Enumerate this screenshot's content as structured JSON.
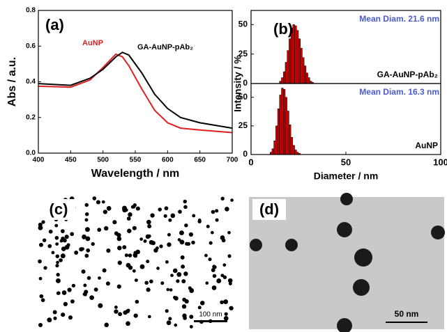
{
  "chart_data": [
    {
      "type": "line",
      "panel_label": "(a)",
      "xlabel": "Wavelength / nm",
      "ylabel": "Abs / a.u.",
      "x": [
        400,
        450,
        480,
        500,
        520,
        530,
        540,
        560,
        580,
        600,
        620,
        650,
        700
      ],
      "series": [
        {
          "name": "AuNP",
          "color": "#e02020",
          "values": [
            0.375,
            0.37,
            0.41,
            0.48,
            0.555,
            0.54,
            0.49,
            0.36,
            0.24,
            0.17,
            0.14,
            0.13,
            0.115
          ]
        },
        {
          "name": "GA-AuNP-pAb₂",
          "color": "#000000",
          "values": [
            0.39,
            0.38,
            0.42,
            0.47,
            0.54,
            0.565,
            0.55,
            0.45,
            0.33,
            0.25,
            0.2,
            0.17,
            0.14
          ]
        }
      ],
      "xlim": [
        400,
        700
      ],
      "xticks": [
        400,
        450,
        500,
        550,
        600,
        650,
        700
      ],
      "ylim": [
        0,
        0.8
      ],
      "yticks": [
        {
          "value": 0,
          "label": "0.0"
        },
        0.2,
        0.4,
        0.6,
        0.8
      ]
    },
    {
      "type": "histogram",
      "panel_label": "(b)",
      "ylabel": "Intensity / %",
      "series_label": "GA-AuNP-pAb₂",
      "annotation": "Mean Diam. 21.6 nm",
      "bins": [
        15,
        16,
        17,
        18,
        19,
        20,
        21,
        22,
        23,
        24,
        25,
        26,
        27,
        28,
        29,
        30,
        31,
        32,
        33
      ],
      "values": [
        2,
        5,
        10,
        18,
        28,
        38,
        47,
        50,
        49,
        45,
        38,
        30,
        22,
        15,
        9,
        5,
        2,
        1
      ],
      "color": "#cc0000",
      "xlim": [
        0,
        100
      ],
      "ylim": [
        0,
        62
      ],
      "yticks": [
        0,
        25,
        50
      ]
    },
    {
      "type": "histogram",
      "xlabel": "Diameter / nm",
      "series_label": "AuNP",
      "annotation": "Mean Diam. 16.3 nm",
      "bins": [
        10,
        11,
        12,
        13,
        14,
        15,
        16,
        17,
        18,
        19,
        20,
        21,
        22,
        23,
        24,
        25,
        26
      ],
      "values": [
        2,
        5,
        12,
        25,
        40,
        52,
        58,
        57,
        50,
        38,
        26,
        15,
        8,
        4,
        2,
        1
      ],
      "color": "#cc0000",
      "xlim": [
        0,
        100
      ],
      "xticks": [
        0,
        50,
        100
      ],
      "ylim": [
        0,
        62
      ],
      "yticks": [
        0,
        25,
        50
      ]
    }
  ],
  "images": [
    {
      "panel_label": "(c)",
      "scale_bar": "100 nm"
    },
    {
      "panel_label": "(d)",
      "scale_bar": "50 nm"
    }
  ]
}
